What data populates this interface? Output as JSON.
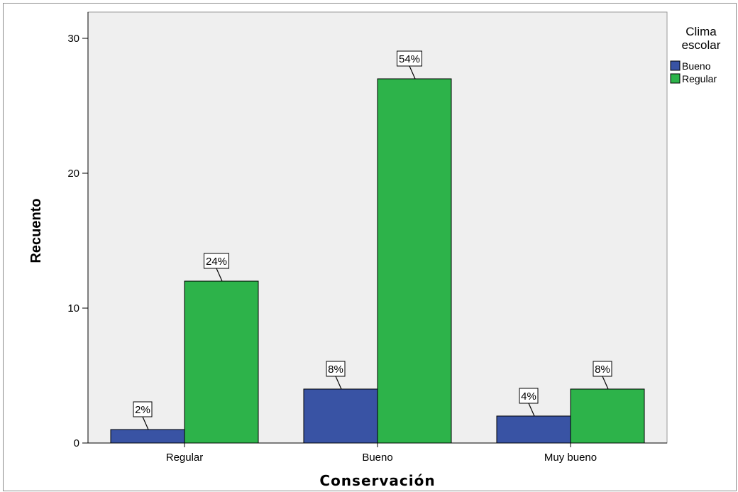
{
  "chart_data": {
    "type": "bar",
    "title": "",
    "xlabel": "Conservación",
    "ylabel": "Recuento",
    "categories": [
      "Regular",
      "Bueno",
      "Muy bueno"
    ],
    "series": [
      {
        "name": "Bueno",
        "color": "#3953a4",
        "values": [
          1,
          4,
          2
        ],
        "labels": [
          "2%",
          "8%",
          "4%"
        ]
      },
      {
        "name": "Regular",
        "color": "#2db34a",
        "values": [
          12,
          27,
          4
        ],
        "labels": [
          "24%",
          "54%",
          "8%"
        ]
      }
    ],
    "ylim": [
      0,
      30
    ],
    "yticks": [
      0,
      10,
      20,
      30
    ],
    "grid": false,
    "legend": {
      "title": "Clima escolar",
      "placement": "right"
    },
    "plot_background": "#efefef"
  }
}
